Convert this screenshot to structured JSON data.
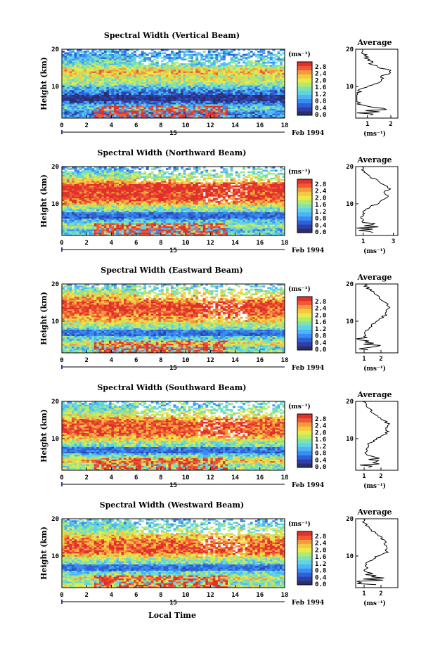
{
  "figure": {
    "xlabel": "Local Time",
    "date_day": "15",
    "date_label": "Feb 1994",
    "ylabel": "Height (km)",
    "colorbar_unit": "(ms⁻¹)",
    "avg_title": "Average",
    "avg_unit": "(ms⁻¹)"
  },
  "colorbar": {
    "ticks": [
      "2.8",
      "2.4",
      "2.0",
      "1.6",
      "1.2",
      "0.8",
      "0.4",
      "0.0"
    ],
    "colors": [
      "#2b2e6e",
      "#2f3fa8",
      "#2f61d6",
      "#3a8cf0",
      "#4fb3f5",
      "#5fd3e8",
      "#7fe3b0",
      "#b5ea6a",
      "#e8ea4a",
      "#f5c843",
      "#f59a3c",
      "#ef5a35",
      "#e0312b"
    ]
  },
  "chart_data": [
    {
      "type": "heatmap",
      "title": "Spectral Width (Vertical Beam)",
      "xlabel": "Local Time",
      "ylabel": "Height (km)",
      "xlim": [
        0,
        18
      ],
      "ylim": [
        1.5,
        20
      ],
      "x_ticks": [
        "0",
        "2",
        "4",
        "6",
        "8",
        "10",
        "12",
        "14",
        "16",
        "18"
      ],
      "y_ticks": [
        "20",
        "10"
      ],
      "value_range": [
        0.0,
        3.0
      ],
      "profile": [
        [
          2,
          0.8
        ],
        [
          3,
          0.6
        ],
        [
          4,
          1.2
        ],
        [
          5,
          0.9
        ],
        [
          6,
          0.4
        ],
        [
          7,
          0.35
        ],
        [
          8,
          0.5
        ],
        [
          9,
          0.7
        ],
        [
          10,
          1.0
        ],
        [
          11,
          1.5
        ],
        [
          12,
          1.6
        ],
        [
          13,
          1.7
        ],
        [
          14,
          2.0
        ],
        [
          15,
          1.6
        ],
        [
          16,
          1.2
        ],
        [
          17,
          1.1
        ],
        [
          18,
          0.9
        ],
        [
          19,
          0.8
        ],
        [
          20,
          0.8
        ]
      ],
      "avg_xlim": [
        0.5,
        2.3
      ],
      "avg_x_ticks": [
        "1",
        "2"
      ],
      "avg_y_ticks": [
        "20",
        "10"
      ]
    },
    {
      "type": "heatmap",
      "title": "Spectral Width (Northward Beam)",
      "xlabel": "Local Time",
      "ylabel": "Height (km)",
      "xlim": [
        0,
        18
      ],
      "ylim": [
        1.5,
        20
      ],
      "x_ticks": [
        "0",
        "2",
        "4",
        "6",
        "8",
        "10",
        "12",
        "14",
        "16",
        "18"
      ],
      "y_ticks": [
        "20",
        "10"
      ],
      "value_range": [
        0.0,
        3.0
      ],
      "profile": [
        [
          2,
          1.2
        ],
        [
          3,
          0.9
        ],
        [
          4,
          1.6
        ],
        [
          5,
          1.1
        ],
        [
          6,
          0.9
        ],
        [
          7,
          1.0
        ],
        [
          8,
          1.1
        ],
        [
          9,
          1.4
        ],
        [
          10,
          1.9
        ],
        [
          11,
          2.3
        ],
        [
          12,
          2.6
        ],
        [
          13,
          2.4
        ],
        [
          14,
          2.7
        ],
        [
          15,
          2.5
        ],
        [
          16,
          2.0
        ],
        [
          17,
          1.6
        ],
        [
          18,
          1.3
        ],
        [
          19,
          1.0
        ],
        [
          20,
          0.9
        ]
      ],
      "avg_xlim": [
        0.5,
        3.3
      ],
      "avg_x_ticks": [
        "1",
        "3"
      ],
      "avg_y_ticks": [
        "20",
        "10"
      ]
    },
    {
      "type": "heatmap",
      "title": "Spectral Width (Eastward Beam)",
      "xlabel": "Local Time",
      "ylabel": "Height (km)",
      "xlim": [
        0,
        18
      ],
      "ylim": [
        1.5,
        20
      ],
      "x_ticks": [
        "0",
        "2",
        "4",
        "6",
        "8",
        "10",
        "12",
        "14",
        "16",
        "18"
      ],
      "y_ticks": [
        "20",
        "10"
      ],
      "value_range": [
        0.0,
        3.0
      ],
      "profile": [
        [
          2,
          1.3
        ],
        [
          3,
          1.1
        ],
        [
          4,
          1.9
        ],
        [
          5,
          1.2
        ],
        [
          6,
          1.0
        ],
        [
          7,
          1.1
        ],
        [
          8,
          1.2
        ],
        [
          9,
          1.5
        ],
        [
          10,
          1.8
        ],
        [
          11,
          2.1
        ],
        [
          12,
          2.3
        ],
        [
          13,
          2.4
        ],
        [
          14,
          2.5
        ],
        [
          15,
          2.3
        ],
        [
          16,
          2.0
        ],
        [
          17,
          1.8
        ],
        [
          18,
          1.5
        ],
        [
          19,
          1.2
        ],
        [
          20,
          1.0
        ]
      ],
      "avg_xlim": [
        0.5,
        3.0
      ],
      "avg_x_ticks": [
        "1",
        "2"
      ],
      "avg_y_ticks": [
        "20",
        "10"
      ]
    },
    {
      "type": "heatmap",
      "title": "Spectral Width (Southward Beam)",
      "xlabel": "Local Time",
      "ylabel": "Height (km)",
      "xlim": [
        0,
        18
      ],
      "ylim": [
        1.5,
        20
      ],
      "x_ticks": [
        "0",
        "2",
        "4",
        "6",
        "8",
        "10",
        "12",
        "14",
        "16",
        "18"
      ],
      "y_ticks": [
        "20",
        "10"
      ],
      "value_range": [
        0.0,
        3.0
      ],
      "profile": [
        [
          2,
          1.4
        ],
        [
          3,
          1.3
        ],
        [
          4,
          2.0
        ],
        [
          5,
          1.4
        ],
        [
          6,
          1.0
        ],
        [
          7,
          1.1
        ],
        [
          8,
          1.2
        ],
        [
          9,
          1.4
        ],
        [
          10,
          1.8
        ],
        [
          11,
          2.2
        ],
        [
          12,
          2.4
        ],
        [
          13,
          2.3
        ],
        [
          14,
          2.4
        ],
        [
          15,
          2.2
        ],
        [
          16,
          1.8
        ],
        [
          17,
          1.5
        ],
        [
          18,
          1.3
        ],
        [
          19,
          1.1
        ],
        [
          20,
          1.0
        ]
      ],
      "avg_xlim": [
        0.5,
        3.0
      ],
      "avg_x_ticks": [
        "1",
        "2"
      ],
      "avg_y_ticks": [
        "20",
        "10"
      ]
    },
    {
      "type": "heatmap",
      "title": "Spectral Width (Westward Beam)",
      "xlabel": "Local Time",
      "ylabel": "Height (km)",
      "xlim": [
        0,
        18
      ],
      "ylim": [
        1.5,
        20
      ],
      "x_ticks": [
        "0",
        "2",
        "4",
        "6",
        "8",
        "10",
        "12",
        "14",
        "16",
        "18"
      ],
      "y_ticks": [
        "20",
        "10"
      ],
      "value_range": [
        0.0,
        3.0
      ],
      "profile": [
        [
          2,
          1.6
        ],
        [
          3,
          1.2
        ],
        [
          4,
          1.8
        ],
        [
          5,
          1.3
        ],
        [
          6,
          1.1
        ],
        [
          7,
          1.1
        ],
        [
          8,
          1.2
        ],
        [
          9,
          1.4
        ],
        [
          10,
          1.8
        ],
        [
          11,
          2.3
        ],
        [
          12,
          2.4
        ],
        [
          13,
          2.3
        ],
        [
          14,
          2.2
        ],
        [
          15,
          2.0
        ],
        [
          16,
          1.7
        ],
        [
          17,
          1.4
        ],
        [
          18,
          1.2
        ],
        [
          19,
          1.0
        ],
        [
          20,
          0.9
        ]
      ],
      "avg_xlim": [
        0.5,
        3.0
      ],
      "avg_x_ticks": [
        "1",
        "2"
      ],
      "avg_y_ticks": [
        "20",
        "10"
      ]
    }
  ]
}
